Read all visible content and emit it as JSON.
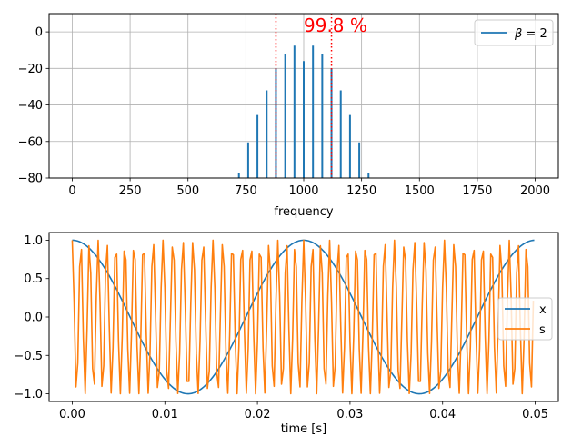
{
  "chart_data": [
    {
      "type": "bar",
      "subtype": "stem",
      "xlabel": "frequency",
      "ylabel": "",
      "xlim": [
        -100,
        2100
      ],
      "ylim": [
        -80,
        10
      ],
      "xticks": [
        0,
        250,
        500,
        750,
        1000,
        1250,
        1500,
        1750,
        2000
      ],
      "yticks": [
        0,
        -20,
        -40,
        -60,
        -80
      ],
      "grid": true,
      "legend_position": "top-right",
      "series": [
        {
          "name": "β = 2",
          "label_math": true,
          "color": "#1f77b4",
          "x": [
            720,
            760,
            800,
            840,
            880,
            920,
            960,
            1000,
            1040,
            1080,
            1120,
            1160,
            1200,
            1240,
            1280
          ],
          "values": [
            -77.5,
            -60.5,
            -45.5,
            -32,
            -20,
            -12,
            -7.5,
            -16,
            -7.5,
            -12,
            -20,
            -32,
            -45.5,
            -60.5,
            -77.5
          ]
        }
      ],
      "vlines": [
        880,
        1120
      ],
      "vline_color": "#ff0000",
      "annotation": {
        "text": "99.8 %",
        "x": 1000,
        "y": 0,
        "color": "#ff0000"
      }
    },
    {
      "type": "line",
      "xlabel": "time [s]",
      "ylabel": "",
      "xlim": [
        -0.0025,
        0.0525
      ],
      "ylim": [
        -1.1,
        1.1
      ],
      "xticks": [
        0.0,
        0.01,
        0.02,
        0.03,
        0.04,
        0.05
      ],
      "xtick_labels": [
        "0.00",
        "0.01",
        "0.02",
        "0.03",
        "0.04",
        "0.05"
      ],
      "yticks": [
        1.0,
        0.5,
        0.0,
        -0.5,
        -1.0
      ],
      "ytick_labels": [
        "1.0",
        "0.5",
        "0.0",
        "−0.5",
        "−1.0"
      ],
      "grid": false,
      "legend_position": "center-right",
      "x_range": [
        0,
        0.0499
      ],
      "series": [
        {
          "name": "x",
          "color": "#1f77b4",
          "formula": "cos(2*pi*40*t)"
        },
        {
          "name": "s",
          "color": "#ff7f0e",
          "formula": "cos(2*pi*1000*t + 2*sin(2*pi*40*t))",
          "sample_step": 0.0002
        }
      ]
    }
  ]
}
